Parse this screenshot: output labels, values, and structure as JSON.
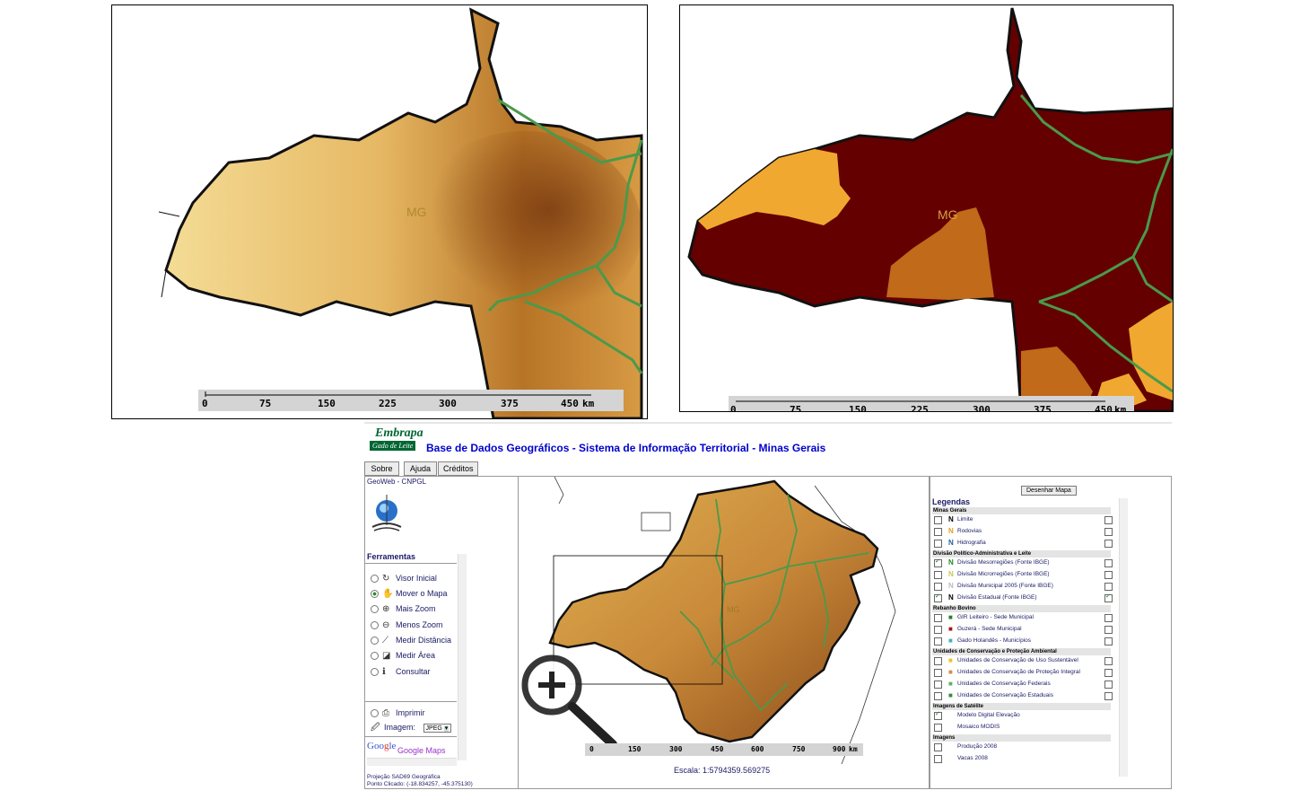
{
  "top_left_map": {
    "label": "MG",
    "scale": {
      "ticks": [
        "0",
        "75",
        "150",
        "225",
        "300",
        "375",
        "450"
      ],
      "unit": "km"
    }
  },
  "top_right_map": {
    "label": "MG",
    "scale": {
      "ticks": [
        "0",
        "75",
        "150",
        "225",
        "300",
        "375",
        "450"
      ],
      "unit": "km"
    }
  },
  "app": {
    "logo": {
      "main": "Embrapa",
      "sub": "Gado de Leite"
    },
    "title": "Base de Dados Geográficos - Sistema de Informação Territorial - Minas Gerais",
    "nav": [
      {
        "label": "Sobre"
      },
      {
        "label": "Ajuda"
      },
      {
        "label": "Créditos"
      }
    ],
    "left_panel": {
      "header": "GeoWeb - CNPGL",
      "tools_title": "Ferramentas",
      "tools": [
        {
          "label": "Visor Inicial",
          "icon": "refresh-icon",
          "selected": false
        },
        {
          "label": "Mover o Mapa",
          "icon": "hand-icon",
          "selected": true
        },
        {
          "label": "Mais Zoom",
          "icon": "zoom-in-icon",
          "selected": false
        },
        {
          "label": "Menos Zoom",
          "icon": "zoom-out-icon",
          "selected": false
        },
        {
          "label": "Medir Distância",
          "icon": "ruler-icon",
          "selected": false
        },
        {
          "label": "Medir Área",
          "icon": "area-icon",
          "selected": false
        },
        {
          "label": "Consultar",
          "icon": "info-icon",
          "selected": false
        }
      ],
      "print_label": "Imprimir",
      "image_label": "Imagem:",
      "image_format": "JPEG",
      "google_maps_label": "Google Maps",
      "projection": "Projeção SAD69 Geográfica",
      "clicked_point": "Ponto Clicado: (-18.834257, -45.375130)"
    },
    "map": {
      "label": "MG",
      "scale": {
        "ticks": [
          "0",
          "150",
          "300",
          "450",
          "600",
          "750",
          "900"
        ],
        "unit": "km"
      },
      "scale_text": "Escala: 1:5794359.569275"
    },
    "right_panel": {
      "draw_button": "Desenhar Mapa",
      "title": "Legendas",
      "sections": [
        {
          "name": "Minas Gerais",
          "items": [
            {
              "label": "Limite",
              "checked": false,
              "right_checked": false,
              "icon_color": "#000000"
            },
            {
              "label": "Rodovias",
              "checked": false,
              "right_checked": false,
              "icon_color": "#e0a020"
            },
            {
              "label": "Hidrografia",
              "checked": false,
              "right_checked": false,
              "icon_color": "#2060a0"
            }
          ]
        },
        {
          "name": "Divisão Político-Administrativa e Leite",
          "items": [
            {
              "label": "Divisão Mesorregiões (Fonte IBGE)",
              "checked": true,
              "right_checked": false,
              "icon_color": "#228822"
            },
            {
              "label": "Divisão Microrregiões (Fonte IBGE)",
              "checked": false,
              "right_checked": false,
              "icon_color": "#c8c850"
            },
            {
              "label": "Divisão Municipal 2005 (Fonte IBGE)",
              "checked": false,
              "right_checked": false,
              "icon_color": "#bbbbbb"
            },
            {
              "label": "Divisão Estadual (Fonte IBGE)",
              "checked": true,
              "right_checked": true,
              "icon_color": "#000000"
            }
          ]
        },
        {
          "name": "Rebanho Bovino",
          "items": [
            {
              "label": "GIR Leiteiro - Sede Municipal",
              "checked": false,
              "right_checked": false,
              "icon_color": "#2a7a2a"
            },
            {
              "label": "Guzerá - Sede Municipal",
              "checked": false,
              "right_checked": false,
              "icon_color": "#b01010"
            },
            {
              "label": "Gado Holandês - Municípios",
              "checked": false,
              "right_checked": false,
              "icon_color": "#40b0c0"
            }
          ]
        },
        {
          "name": "Unidades de Conservação e Proteção Ambiental",
          "items": [
            {
              "label": "Unidades de Conservação de Uso Sustentável",
              "checked": false,
              "right_checked": false,
              "icon_color": "#f0c020"
            },
            {
              "label": "Unidades de Conservação de Proteção Integral",
              "checked": false,
              "right_checked": false,
              "icon_color": "#d09040"
            },
            {
              "label": "Unidades de Conservação Federais",
              "checked": false,
              "right_checked": false,
              "icon_color": "#60b060"
            },
            {
              "label": "Unidades de Conservação Estaduais",
              "checked": false,
              "right_checked": false,
              "icon_color": "#3a8a3a"
            }
          ]
        },
        {
          "name": "Imagens de Satélite",
          "items": [
            {
              "label": "Modelo Digital Elevação",
              "checked": true,
              "right_checked": null,
              "icon_color": null
            },
            {
              "label": "Mosaico MODIS",
              "checked": false,
              "right_checked": null,
              "icon_color": null
            }
          ]
        },
        {
          "name": "Imagens",
          "items": [
            {
              "label": "Produção 2008",
              "checked": false,
              "right_checked": null,
              "icon_color": null
            },
            {
              "label": "Vacas 2008",
              "checked": false,
              "right_checked": null,
              "icon_color": null
            }
          ]
        }
      ]
    }
  },
  "colors": {
    "accent": "#0000cc",
    "border_green": "#4a9a4a",
    "terrain_light": "#f2d78a",
    "terrain_dark": "#7a3a10",
    "region_dark": "#640000",
    "region_mid": "#c06a1a",
    "region_light": "#f0a830"
  }
}
